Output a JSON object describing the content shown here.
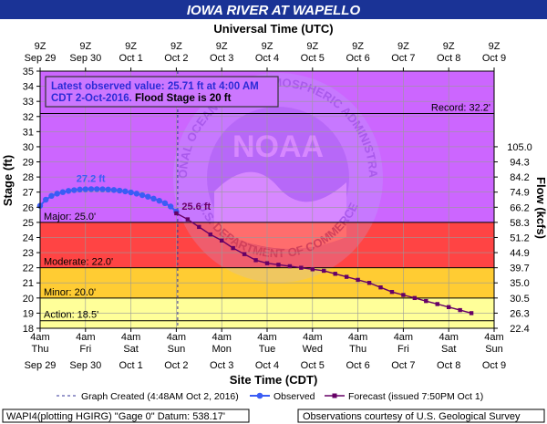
{
  "chart_data": {
    "type": "line",
    "title": "IOWA RIVER AT WAPELLO",
    "top_axis_title": "Universal Time (UTC)",
    "bottom_axis_title": "Site Time (CDT)",
    "ylabel": "Stage (ft)",
    "y2label": "Flow (kcfs)",
    "ylim": [
      18,
      35
    ],
    "y_ticks": [
      18,
      19,
      20,
      21,
      22,
      23,
      24,
      25,
      26,
      27,
      28,
      29,
      30,
      31,
      32,
      33,
      34,
      35
    ],
    "flow_ticks": [
      {
        "stage": 18,
        "flow": "22.4"
      },
      {
        "stage": 19,
        "flow": "26.3"
      },
      {
        "stage": 20,
        "flow": "30.5"
      },
      {
        "stage": 21,
        "flow": "35.0"
      },
      {
        "stage": 22,
        "flow": "39.7"
      },
      {
        "stage": 23,
        "flow": "44.9"
      },
      {
        "stage": 24,
        "flow": "51.2"
      },
      {
        "stage": 25,
        "flow": "58.3"
      },
      {
        "stage": 26,
        "flow": "66.2"
      },
      {
        "stage": 27,
        "flow": "74.9"
      },
      {
        "stage": 28,
        "flow": "84.2"
      },
      {
        "stage": 29,
        "flow": "94.3"
      },
      {
        "stage": 30,
        "flow": "105.0"
      }
    ],
    "x_unit": "days from 4am CDT Thu Sep 29",
    "x_range": [
      0,
      10
    ],
    "top_ticks": [
      {
        "line1": "9Z",
        "line2": "Sep 29"
      },
      {
        "line1": "9Z",
        "line2": "Sep 30"
      },
      {
        "line1": "9Z",
        "line2": "Oct 1"
      },
      {
        "line1": "9Z",
        "line2": "Oct 2"
      },
      {
        "line1": "9Z",
        "line2": "Oct 3"
      },
      {
        "line1": "9Z",
        "line2": "Oct 4"
      },
      {
        "line1": "9Z",
        "line2": "Oct 5"
      },
      {
        "line1": "9Z",
        "line2": "Oct 6"
      },
      {
        "line1": "9Z",
        "line2": "Oct 7"
      },
      {
        "line1": "9Z",
        "line2": "Oct 8"
      },
      {
        "line1": "9Z",
        "line2": "Oct 9"
      }
    ],
    "bottom_ticks": [
      {
        "line1": "4am",
        "line2": "Thu",
        "line3": "Sep 29"
      },
      {
        "line1": "4am",
        "line2": "Fri",
        "line3": "Sep 30"
      },
      {
        "line1": "4am",
        "line2": "Sat",
        "line3": "Oct 1"
      },
      {
        "line1": "4am",
        "line2": "Sun",
        "line3": "Oct 2"
      },
      {
        "line1": "4am",
        "line2": "Mon",
        "line3": "Oct 3"
      },
      {
        "line1": "4am",
        "line2": "Tue",
        "line3": "Oct 4"
      },
      {
        "line1": "4am",
        "line2": "Wed",
        "line3": "Oct 5"
      },
      {
        "line1": "4am",
        "line2": "Thu",
        "line3": "Oct 6"
      },
      {
        "line1": "4am",
        "line2": "Fri",
        "line3": "Oct 7"
      },
      {
        "line1": "4am",
        "line2": "Sat",
        "line3": "Oct 8"
      },
      {
        "line1": "4am",
        "line2": "Sun",
        "line3": "Oct 9"
      }
    ],
    "flood_zones": [
      {
        "name": "action",
        "from": 18,
        "to": 20,
        "color": "#ffff99"
      },
      {
        "name": "minor",
        "from": 20,
        "to": 22,
        "color": "#ffcc33"
      },
      {
        "name": "moderate",
        "from": 22,
        "to": 25,
        "color": "#ff4444"
      },
      {
        "name": "major",
        "from": 25,
        "to": 35,
        "color": "#cc66ff"
      }
    ],
    "thresholds": [
      {
        "label": "Action: 18.5'",
        "value": 18.5,
        "label_side": "left"
      },
      {
        "label": "Minor: 20.0'",
        "value": 20.0,
        "label_side": "left"
      },
      {
        "label": "Moderate: 22.0'",
        "value": 22.0,
        "label_side": "left"
      },
      {
        "label": "Major: 25.0'",
        "value": 25.0,
        "label_side": "left"
      },
      {
        "label": "Record: 32.2'",
        "value": 32.2,
        "label_side": "right"
      }
    ],
    "info_box": {
      "line1": "Latest observed value: 25.71 ft at 4:00 AM",
      "line2_prefix": "CDT 2-Oct-2016. ",
      "line2_suffix": "Flood Stage is 20 ft"
    },
    "graph_created_x": 3.03,
    "series": [
      {
        "name": "Observed",
        "color": "#3a5cf5",
        "points": [
          [
            0.0,
            26.1
          ],
          [
            0.125,
            26.5
          ],
          [
            0.25,
            26.75
          ],
          [
            0.375,
            26.9
          ],
          [
            0.5,
            27.0
          ],
          [
            0.625,
            27.08
          ],
          [
            0.75,
            27.13
          ],
          [
            0.875,
            27.17
          ],
          [
            1.0,
            27.19
          ],
          [
            1.125,
            27.2
          ],
          [
            1.25,
            27.2
          ],
          [
            1.375,
            27.19
          ],
          [
            1.5,
            27.17
          ],
          [
            1.625,
            27.14
          ],
          [
            1.75,
            27.1
          ],
          [
            1.875,
            27.05
          ],
          [
            2.0,
            26.98
          ],
          [
            2.125,
            26.9
          ],
          [
            2.25,
            26.8
          ],
          [
            2.375,
            26.7
          ],
          [
            2.5,
            26.57
          ],
          [
            2.625,
            26.43
          ],
          [
            2.75,
            26.27
          ],
          [
            2.875,
            26.05
          ],
          [
            3.0,
            25.71
          ]
        ]
      },
      {
        "name": "Forecast (issued 7:50PM Oct 1)",
        "color": "#660066",
        "points": [
          [
            3.0,
            25.6
          ],
          [
            3.25,
            25.2
          ],
          [
            3.5,
            24.7
          ],
          [
            3.75,
            24.2
          ],
          [
            4.0,
            23.8
          ],
          [
            4.25,
            23.3
          ],
          [
            4.5,
            22.9
          ],
          [
            4.75,
            22.5
          ],
          [
            5.0,
            22.3
          ],
          [
            5.25,
            22.2
          ],
          [
            5.5,
            22.1
          ],
          [
            5.75,
            22.0
          ],
          [
            6.0,
            21.9
          ],
          [
            6.25,
            21.8
          ],
          [
            6.5,
            21.6
          ],
          [
            6.75,
            21.4
          ],
          [
            7.0,
            21.2
          ],
          [
            7.25,
            21.0
          ],
          [
            7.5,
            20.7
          ],
          [
            7.75,
            20.4
          ],
          [
            8.0,
            20.2
          ],
          [
            8.25,
            20.0
          ],
          [
            8.5,
            19.8
          ],
          [
            8.75,
            19.6
          ],
          [
            9.0,
            19.4
          ],
          [
            9.25,
            19.2
          ],
          [
            9.5,
            19.0
          ]
        ]
      }
    ],
    "annotations": [
      {
        "text": "27.2 ft",
        "x": 1.0,
        "y": 27.2,
        "color": "#3a5cf5"
      },
      {
        "text": "25.6 ft",
        "x": 3.0,
        "y": 25.6,
        "color": "#660066"
      }
    ]
  },
  "legend": {
    "graph_created": "Graph Created (4:48AM Oct 2, 2016)",
    "observed": "Observed",
    "forecast": "Forecast (issued 7:50PM Oct 1)"
  },
  "footer": {
    "left": "WAPI4(plotting HGIRG) \"Gage 0\" Datum: 538.17'",
    "right": "Observations courtesy of U.S. Geological Survey"
  },
  "watermark": {
    "center_text": "NOAA",
    "ring_text": "NATIONAL OCEANIC AND ATMOSPHERIC ADMINISTRATION",
    "bottom_text": "U.S. DEPARTMENT OF COMMERCE"
  },
  "colors": {
    "title_bar": "#1a3396",
    "frame": "#000000",
    "grid": "#9a9a9a"
  }
}
